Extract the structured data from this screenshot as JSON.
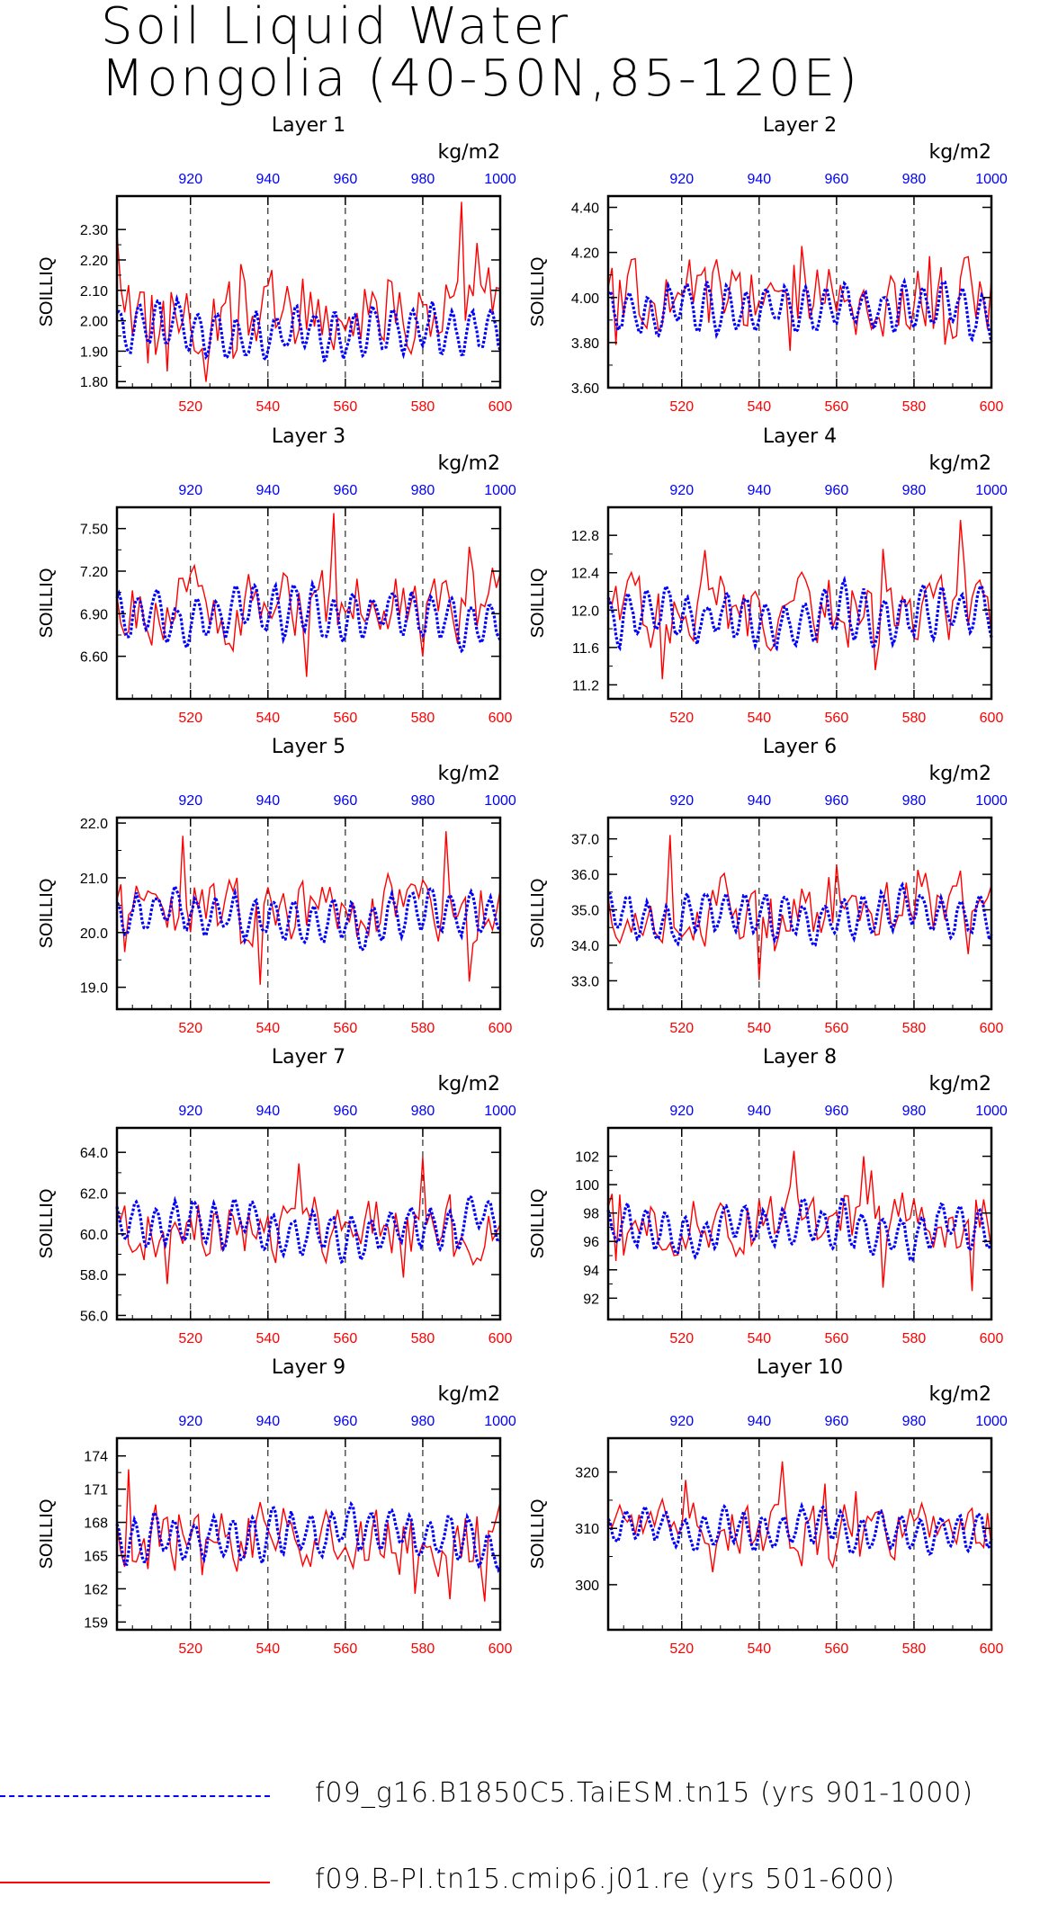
{
  "title": {
    "line1": "Soil Liquid Water",
    "line2": "Mongolia (40-50N,85-120E)"
  },
  "colors": {
    "red_series": "#ff0000",
    "blue_series": "#0000ff",
    "axis": "#000000"
  },
  "legend": [
    {
      "label": "f09_g16.B1850C5.TaiESM.tn15 (yrs 901-1000)",
      "color": "#0000ff",
      "style": "dashed"
    },
    {
      "label": "f09.B-PI.tn15.cmip6.j01.re (yrs 501-600)",
      "color": "#ff0000",
      "style": "solid"
    }
  ],
  "chart_data": [
    {
      "type": "line",
      "title": "Layer 1",
      "ylabel": "SOILLIQ",
      "top_units": "kg/m2",
      "ylim": [
        1.78,
        2.41
      ],
      "yticks": [
        "1.80",
        "1.90",
        "2.00",
        "2.10",
        "2.20",
        "2.30"
      ],
      "ytick_values": [
        1.8,
        1.9,
        2.0,
        2.1,
        2.2,
        2.3
      ],
      "red_base": 2.05,
      "red_amp": 0.16,
      "blue_base": 1.96,
      "blue_amp": 0.12
    },
    {
      "type": "line",
      "title": "Layer 2",
      "ylabel": "SOILLIQ",
      "top_units": "kg/m2",
      "ylim": [
        3.6,
        4.45
      ],
      "yticks": [
        "3.60",
        "3.80",
        "4.00",
        "4.20",
        "4.40"
      ],
      "ytick_values": [
        3.6,
        3.8,
        4.0,
        4.2,
        4.4
      ],
      "red_base": 4.0,
      "red_amp": 0.2,
      "blue_base": 3.93,
      "blue_amp": 0.16
    },
    {
      "type": "line",
      "title": "Layer 3",
      "ylabel": "SOILLIQ",
      "top_units": "kg/m2",
      "ylim": [
        6.3,
        7.65
      ],
      "yticks": [
        "6.60",
        "6.90",
        "7.20",
        "7.50"
      ],
      "ytick_values": [
        6.6,
        6.9,
        7.2,
        7.5
      ],
      "red_base": 6.95,
      "red_amp": 0.3,
      "blue_base": 6.88,
      "blue_amp": 0.26
    },
    {
      "type": "line",
      "title": "Layer 4",
      "ylabel": "SOILLIQ",
      "top_units": "kg/m2",
      "ylim": [
        11.05,
        13.1
      ],
      "yticks": [
        "11.2",
        "11.6",
        "12.0",
        "12.4",
        "12.8"
      ],
      "ytick_values": [
        11.2,
        11.6,
        12.0,
        12.4,
        12.8
      ],
      "red_base": 12.0,
      "red_amp": 0.45,
      "blue_base": 11.95,
      "blue_amp": 0.4
    },
    {
      "type": "line",
      "title": "Layer 5",
      "ylabel": "SOILLIQ",
      "top_units": "kg/m2",
      "ylim": [
        18.6,
        22.1
      ],
      "yticks": [
        "19.0",
        "20.0",
        "21.0",
        "22.0"
      ],
      "ytick_values": [
        19,
        20,
        21,
        22
      ],
      "red_base": 20.4,
      "red_amp": 0.7,
      "blue_base": 20.3,
      "blue_amp": 0.6
    },
    {
      "type": "line",
      "title": "Layer 6",
      "ylabel": "SOILLIQ",
      "top_units": "kg/m2",
      "ylim": [
        32.2,
        37.6
      ],
      "yticks": [
        "33.0",
        "34.0",
        "35.0",
        "36.0",
        "37.0"
      ],
      "ytick_values": [
        33,
        34,
        35,
        36,
        37
      ],
      "red_base": 35.0,
      "red_amp": 1.1,
      "blue_base": 34.9,
      "blue_amp": 0.9
    },
    {
      "type": "line",
      "title": "Layer 7",
      "ylabel": "SOILLIQ",
      "top_units": "kg/m2",
      "ylim": [
        55.8,
        65.2
      ],
      "yticks": [
        "56.0",
        "58.0",
        "60.0",
        "62.0",
        "64.0"
      ],
      "ytick_values": [
        56,
        58,
        60,
        62,
        64
      ],
      "red_base": 60.4,
      "red_amp": 1.8,
      "blue_base": 60.4,
      "blue_amp": 1.6
    },
    {
      "type": "line",
      "title": "Layer 8",
      "ylabel": "SOILLIQ",
      "top_units": "kg/m2",
      "ylim": [
        90.5,
        104
      ],
      "yticks": [
        "92",
        "94",
        "96",
        "98",
        "100",
        "102"
      ],
      "ytick_values": [
        92,
        94,
        96,
        98,
        100,
        102
      ],
      "red_base": 97.5,
      "red_amp": 2.6,
      "blue_base": 97.0,
      "blue_amp": 2.4
    },
    {
      "type": "line",
      "title": "Layer 9",
      "ylabel": "SOILLIQ",
      "top_units": "kg/m2",
      "ylim": [
        158.3,
        175.6
      ],
      "yticks": [
        "159",
        "162",
        "165",
        "168",
        "171",
        "174"
      ],
      "ytick_values": [
        159,
        162,
        165,
        168,
        171,
        174
      ],
      "red_base": 166.5,
      "red_amp": 3.5,
      "blue_base": 166.5,
      "blue_amp": 3.2
    },
    {
      "type": "line",
      "title": "Layer 10",
      "ylabel": "SOILLIQ",
      "top_units": "kg/m2",
      "ylim": [
        292,
        326
      ],
      "yticks": [
        "300",
        "310",
        "320"
      ],
      "ytick_values": [
        300,
        310,
        320
      ],
      "red_base": 309,
      "red_amp": 6,
      "blue_base": 310,
      "blue_amp": 5
    }
  ],
  "x_bottom": {
    "ticks": [
      "520",
      "540",
      "560",
      "580",
      "600"
    ],
    "tick_values": [
      520,
      540,
      560,
      580,
      600
    ],
    "range": [
      501,
      600
    ]
  },
  "x_top": {
    "ticks": [
      "920",
      "940",
      "960",
      "980",
      "1000"
    ],
    "tick_values": [
      920,
      940,
      960,
      980,
      1000
    ],
    "range": [
      901,
      1000
    ]
  }
}
